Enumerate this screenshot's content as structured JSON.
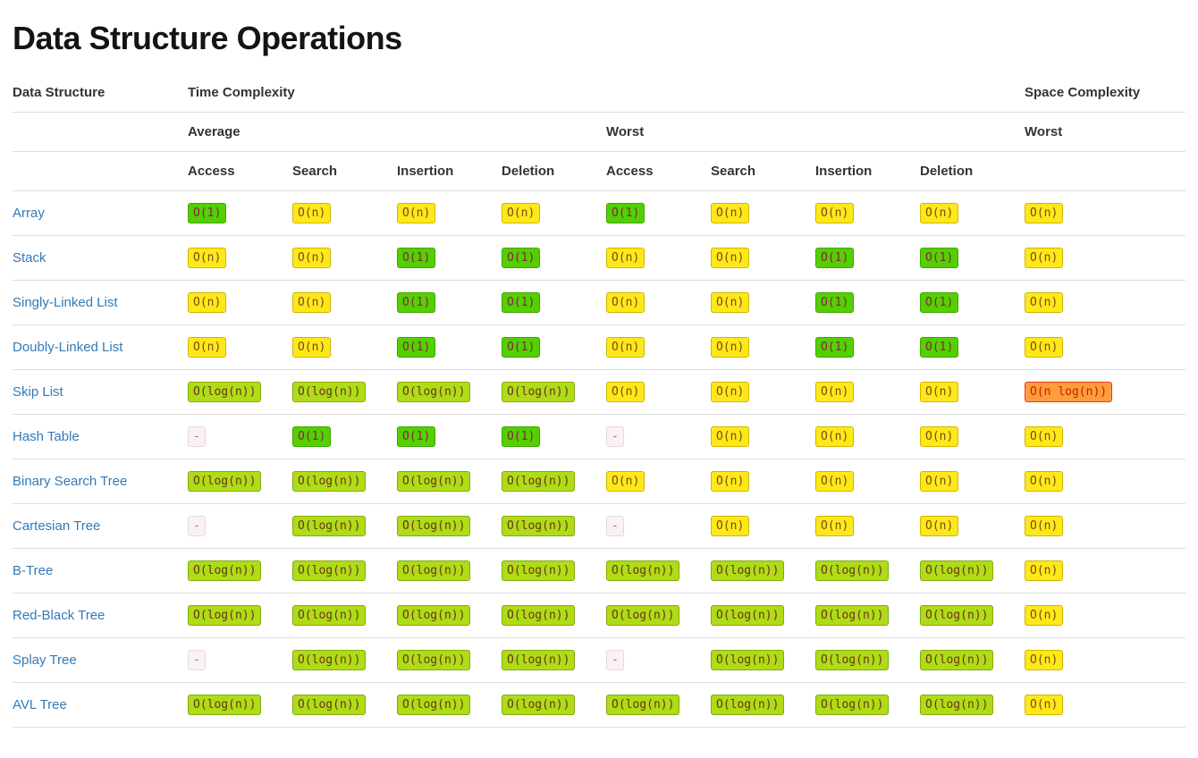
{
  "page": {
    "title": "Data Structure Operations"
  },
  "colors": {
    "link": "#337ab7",
    "divider": "#dddddd",
    "ratings": {
      "green": {
        "bg": "#53D000",
        "border": "#41A300",
        "text": "#8a2144"
      },
      "yellowgreen": {
        "bg": "#AEDC17",
        "border": "#86AA0F",
        "text": "#6e3318"
      },
      "yellow": {
        "bg": "#FFE81A",
        "border": "#CCB700",
        "text": "#7a4a14"
      },
      "orange": {
        "bg": "#FF9C3D",
        "border": "#E03E19",
        "text": "#C41E00"
      },
      "na": {
        "bg": "#F9F2F4",
        "border": "#E8D8DC",
        "text": "#D9534F"
      }
    }
  },
  "table": {
    "headers": {
      "data_structure": "Data Structure",
      "time_complexity": "Time Complexity",
      "space_complexity": "Space Complexity",
      "average": "Average",
      "worst": "Worst",
      "space_worst": "Worst"
    },
    "op_headers": [
      "Access",
      "Search",
      "Insertion",
      "Deletion",
      "Access",
      "Search",
      "Insertion",
      "Deletion"
    ],
    "rows": [
      {
        "name": "Array",
        "cells": [
          {
            "text": "O(1)",
            "rating": "green"
          },
          {
            "text": "O(n)",
            "rating": "yellow"
          },
          {
            "text": "O(n)",
            "rating": "yellow"
          },
          {
            "text": "O(n)",
            "rating": "yellow"
          },
          {
            "text": "O(1)",
            "rating": "green"
          },
          {
            "text": "O(n)",
            "rating": "yellow"
          },
          {
            "text": "O(n)",
            "rating": "yellow"
          },
          {
            "text": "O(n)",
            "rating": "yellow"
          },
          {
            "text": "O(n)",
            "rating": "yellow"
          }
        ]
      },
      {
        "name": "Stack",
        "cells": [
          {
            "text": "O(n)",
            "rating": "yellow"
          },
          {
            "text": "O(n)",
            "rating": "yellow"
          },
          {
            "text": "O(1)",
            "rating": "green"
          },
          {
            "text": "O(1)",
            "rating": "green"
          },
          {
            "text": "O(n)",
            "rating": "yellow"
          },
          {
            "text": "O(n)",
            "rating": "yellow"
          },
          {
            "text": "O(1)",
            "rating": "green"
          },
          {
            "text": "O(1)",
            "rating": "green"
          },
          {
            "text": "O(n)",
            "rating": "yellow"
          }
        ]
      },
      {
        "name": "Singly-Linked List",
        "cells": [
          {
            "text": "O(n)",
            "rating": "yellow"
          },
          {
            "text": "O(n)",
            "rating": "yellow"
          },
          {
            "text": "O(1)",
            "rating": "green"
          },
          {
            "text": "O(1)",
            "rating": "green"
          },
          {
            "text": "O(n)",
            "rating": "yellow"
          },
          {
            "text": "O(n)",
            "rating": "yellow"
          },
          {
            "text": "O(1)",
            "rating": "green"
          },
          {
            "text": "O(1)",
            "rating": "green"
          },
          {
            "text": "O(n)",
            "rating": "yellow"
          }
        ]
      },
      {
        "name": "Doubly-Linked List",
        "cells": [
          {
            "text": "O(n)",
            "rating": "yellow"
          },
          {
            "text": "O(n)",
            "rating": "yellow"
          },
          {
            "text": "O(1)",
            "rating": "green"
          },
          {
            "text": "O(1)",
            "rating": "green"
          },
          {
            "text": "O(n)",
            "rating": "yellow"
          },
          {
            "text": "O(n)",
            "rating": "yellow"
          },
          {
            "text": "O(1)",
            "rating": "green"
          },
          {
            "text": "O(1)",
            "rating": "green"
          },
          {
            "text": "O(n)",
            "rating": "yellow"
          }
        ]
      },
      {
        "name": "Skip List",
        "cells": [
          {
            "text": "O(log(n))",
            "rating": "yellowgreen"
          },
          {
            "text": "O(log(n))",
            "rating": "yellowgreen"
          },
          {
            "text": "O(log(n))",
            "rating": "yellowgreen"
          },
          {
            "text": "O(log(n))",
            "rating": "yellowgreen"
          },
          {
            "text": "O(n)",
            "rating": "yellow"
          },
          {
            "text": "O(n)",
            "rating": "yellow"
          },
          {
            "text": "O(n)",
            "rating": "yellow"
          },
          {
            "text": "O(n)",
            "rating": "yellow"
          },
          {
            "text": "O(n log(n))",
            "rating": "orange"
          }
        ]
      },
      {
        "name": "Hash Table",
        "cells": [
          {
            "text": "-",
            "rating": "na"
          },
          {
            "text": "O(1)",
            "rating": "green"
          },
          {
            "text": "O(1)",
            "rating": "green"
          },
          {
            "text": "O(1)",
            "rating": "green"
          },
          {
            "text": "-",
            "rating": "na"
          },
          {
            "text": "O(n)",
            "rating": "yellow"
          },
          {
            "text": "O(n)",
            "rating": "yellow"
          },
          {
            "text": "O(n)",
            "rating": "yellow"
          },
          {
            "text": "O(n)",
            "rating": "yellow"
          }
        ]
      },
      {
        "name": "Binary Search Tree",
        "cells": [
          {
            "text": "O(log(n))",
            "rating": "yellowgreen"
          },
          {
            "text": "O(log(n))",
            "rating": "yellowgreen"
          },
          {
            "text": "O(log(n))",
            "rating": "yellowgreen"
          },
          {
            "text": "O(log(n))",
            "rating": "yellowgreen"
          },
          {
            "text": "O(n)",
            "rating": "yellow"
          },
          {
            "text": "O(n)",
            "rating": "yellow"
          },
          {
            "text": "O(n)",
            "rating": "yellow"
          },
          {
            "text": "O(n)",
            "rating": "yellow"
          },
          {
            "text": "O(n)",
            "rating": "yellow"
          }
        ]
      },
      {
        "name": "Cartesian Tree",
        "cells": [
          {
            "text": "-",
            "rating": "na"
          },
          {
            "text": "O(log(n))",
            "rating": "yellowgreen"
          },
          {
            "text": "O(log(n))",
            "rating": "yellowgreen"
          },
          {
            "text": "O(log(n))",
            "rating": "yellowgreen"
          },
          {
            "text": "-",
            "rating": "na"
          },
          {
            "text": "O(n)",
            "rating": "yellow"
          },
          {
            "text": "O(n)",
            "rating": "yellow"
          },
          {
            "text": "O(n)",
            "rating": "yellow"
          },
          {
            "text": "O(n)",
            "rating": "yellow"
          }
        ]
      },
      {
        "name": "B-Tree",
        "cells": [
          {
            "text": "O(log(n))",
            "rating": "yellowgreen"
          },
          {
            "text": "O(log(n))",
            "rating": "yellowgreen"
          },
          {
            "text": "O(log(n))",
            "rating": "yellowgreen"
          },
          {
            "text": "O(log(n))",
            "rating": "yellowgreen"
          },
          {
            "text": "O(log(n))",
            "rating": "yellowgreen"
          },
          {
            "text": "O(log(n))",
            "rating": "yellowgreen"
          },
          {
            "text": "O(log(n))",
            "rating": "yellowgreen"
          },
          {
            "text": "O(log(n))",
            "rating": "yellowgreen"
          },
          {
            "text": "O(n)",
            "rating": "yellow"
          }
        ]
      },
      {
        "name": "Red-Black Tree",
        "cells": [
          {
            "text": "O(log(n))",
            "rating": "yellowgreen"
          },
          {
            "text": "O(log(n))",
            "rating": "yellowgreen"
          },
          {
            "text": "O(log(n))",
            "rating": "yellowgreen"
          },
          {
            "text": "O(log(n))",
            "rating": "yellowgreen"
          },
          {
            "text": "O(log(n))",
            "rating": "yellowgreen"
          },
          {
            "text": "O(log(n))",
            "rating": "yellowgreen"
          },
          {
            "text": "O(log(n))",
            "rating": "yellowgreen"
          },
          {
            "text": "O(log(n))",
            "rating": "yellowgreen"
          },
          {
            "text": "O(n)",
            "rating": "yellow"
          }
        ]
      },
      {
        "name": "Splay Tree",
        "cells": [
          {
            "text": "-",
            "rating": "na"
          },
          {
            "text": "O(log(n))",
            "rating": "yellowgreen"
          },
          {
            "text": "O(log(n))",
            "rating": "yellowgreen"
          },
          {
            "text": "O(log(n))",
            "rating": "yellowgreen"
          },
          {
            "text": "-",
            "rating": "na"
          },
          {
            "text": "O(log(n))",
            "rating": "yellowgreen"
          },
          {
            "text": "O(log(n))",
            "rating": "yellowgreen"
          },
          {
            "text": "O(log(n))",
            "rating": "yellowgreen"
          },
          {
            "text": "O(n)",
            "rating": "yellow"
          }
        ]
      },
      {
        "name": "AVL Tree",
        "cells": [
          {
            "text": "O(log(n))",
            "rating": "yellowgreen"
          },
          {
            "text": "O(log(n))",
            "rating": "yellowgreen"
          },
          {
            "text": "O(log(n))",
            "rating": "yellowgreen"
          },
          {
            "text": "O(log(n))",
            "rating": "yellowgreen"
          },
          {
            "text": "O(log(n))",
            "rating": "yellowgreen"
          },
          {
            "text": "O(log(n))",
            "rating": "yellowgreen"
          },
          {
            "text": "O(log(n))",
            "rating": "yellowgreen"
          },
          {
            "text": "O(log(n))",
            "rating": "yellowgreen"
          },
          {
            "text": "O(n)",
            "rating": "yellow"
          }
        ]
      }
    ]
  }
}
